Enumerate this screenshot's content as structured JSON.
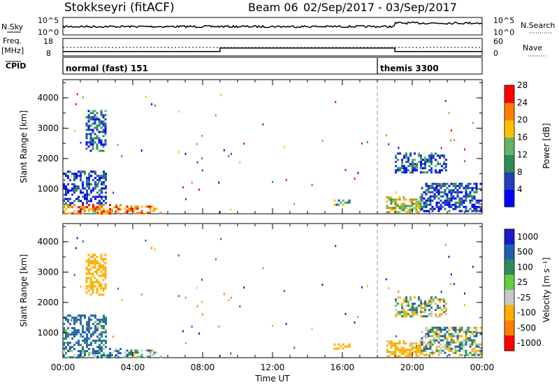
{
  "header": {
    "title": "Stokkseyri (fitACF)",
    "beam": "Beam 06",
    "dates": "02/Sep/2017 - 03/Sep/2017"
  },
  "top_panels": {
    "nsky_label": "N.Sky",
    "nsky_ticks": [
      "10^5",
      "10^0"
    ],
    "nsearch_label": "N.Search",
    "nsearch_ticks": [
      "10^5",
      "10^0"
    ],
    "freq_label": "Freq.",
    "freq_unit": "[MHz]",
    "freq_ticks": [
      "18",
      "8"
    ],
    "nave_label": "Nave",
    "nave_ticks": [
      "60",
      "0"
    ],
    "cpid_label": "CPID",
    "cpid_segments": [
      {
        "label": "normal (fast) 151",
        "start_hour": 0,
        "end_hour": 18
      },
      {
        "label": "themis 3300",
        "start_hour": 18,
        "end_hour": 24
      }
    ],
    "freq_steps": [
      {
        "start_hour": 0,
        "end_hour": 9,
        "value": 10.5
      },
      {
        "start_hour": 9,
        "end_hour": 19,
        "value": 12.5
      },
      {
        "start_hour": 19,
        "end_hour": 24,
        "value": 10.5
      }
    ]
  },
  "chart_data": [
    {
      "type": "heatmap",
      "title": "",
      "xlabel": "",
      "ylabel": "Slant Range [km]",
      "x_range_hours": [
        0,
        24
      ],
      "ylim": [
        180,
        4600
      ],
      "yticks": [
        "1000",
        "2000",
        "3000",
        "4000"
      ],
      "colorbar_label": "Power [dB]",
      "colorbar_ticks": [
        "4",
        "8",
        "12",
        "16",
        "20",
        "24",
        "28"
      ],
      "colorbar_range": [
        0,
        30
      ],
      "colors": [
        "#0000ff",
        "#2040c0",
        "#2e8b57",
        "#66b266",
        "#ffc000",
        "#ff7f00",
        "#ff0000"
      ],
      "echo_regions": [
        {
          "x": [
            0,
            3.3
          ],
          "y": [
            180,
            500
          ],
          "value": 22
        },
        {
          "x": [
            0,
            2.5
          ],
          "y": [
            500,
            1600
          ],
          "value": 6
        },
        {
          "x": [
            3.5,
            5.7
          ],
          "y": [
            180,
            450
          ],
          "value": 24
        },
        {
          "x": [
            15.5,
            16.5
          ],
          "y": [
            450,
            650
          ],
          "value": 12
        },
        {
          "x": [
            18.5,
            20.5
          ],
          "y": [
            180,
            750
          ],
          "value": 18
        },
        {
          "x": [
            20.5,
            24
          ],
          "y": [
            200,
            1200
          ],
          "value": 6
        },
        {
          "x": [
            19,
            22
          ],
          "y": [
            1500,
            2200
          ],
          "value": 8
        },
        {
          "x": [
            1.3,
            2.5
          ],
          "y": [
            2200,
            3600
          ],
          "value": 8
        }
      ]
    },
    {
      "type": "heatmap",
      "title": "",
      "xlabel": "Time UT",
      "ylabel": "Slant Range [km]",
      "x_range_hours": [
        0,
        24
      ],
      "ylim": [
        180,
        4600
      ],
      "yticks": [
        "1000",
        "2000",
        "3000",
        "4000"
      ],
      "xticks": [
        "00:00",
        "04:00",
        "08:00",
        "12:00",
        "16:00",
        "20:00",
        "00:00"
      ],
      "colorbar_label": "Velocity [m s^-1]",
      "colorbar_ticks": [
        "1000",
        "500",
        "100",
        "25",
        "-25",
        "-100",
        "-500",
        "-1000"
      ],
      "colorbar_range": [
        -1000,
        1000
      ],
      "colors": [
        "#1a1acc",
        "#2060b0",
        "#2e8b57",
        "#66cc44",
        "#c8c8c8",
        "#ffb000",
        "#ff7f00",
        "#ff0000"
      ],
      "echo_regions": [
        {
          "x": [
            0,
            3.3
          ],
          "y": [
            180,
            500
          ],
          "value": 100
        },
        {
          "x": [
            0,
            2.5
          ],
          "y": [
            500,
            1600
          ],
          "value": 200
        },
        {
          "x": [
            3.5,
            5.7
          ],
          "y": [
            180,
            450
          ],
          "value": 50
        },
        {
          "x": [
            15.5,
            16.5
          ],
          "y": [
            450,
            650
          ],
          "value": -300
        },
        {
          "x": [
            18.5,
            20.5
          ],
          "y": [
            180,
            750
          ],
          "value": -200
        },
        {
          "x": [
            20.5,
            24
          ],
          "y": [
            200,
            1200
          ],
          "value": 0
        },
        {
          "x": [
            19,
            22
          ],
          "y": [
            1500,
            2200
          ],
          "value": 0
        },
        {
          "x": [
            1.3,
            2.5
          ],
          "y": [
            2200,
            3600
          ],
          "value": -300
        }
      ]
    }
  ]
}
